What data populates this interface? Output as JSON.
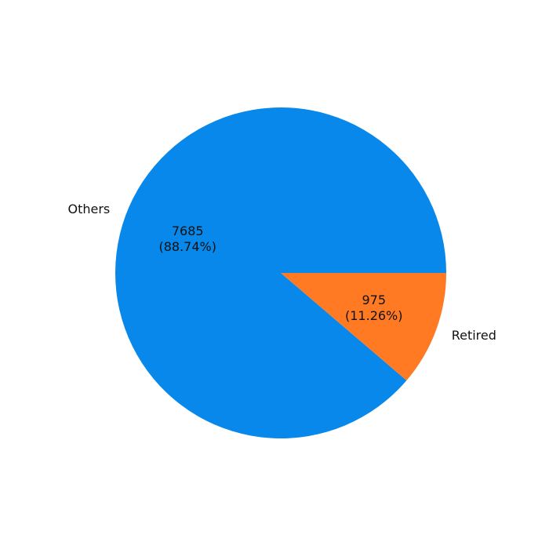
{
  "chart_data": {
    "type": "pie",
    "title": "",
    "slices": [
      {
        "label": "Others",
        "value": 7685,
        "percent_text": "(88.74%)",
        "color": "#0788ea"
      },
      {
        "label": "Retired",
        "value": 975,
        "percent_text": "(11.26%)",
        "color": "#ff7a22"
      }
    ],
    "start_angle_deg": 0,
    "direction": "clockwise",
    "legend": "none"
  }
}
